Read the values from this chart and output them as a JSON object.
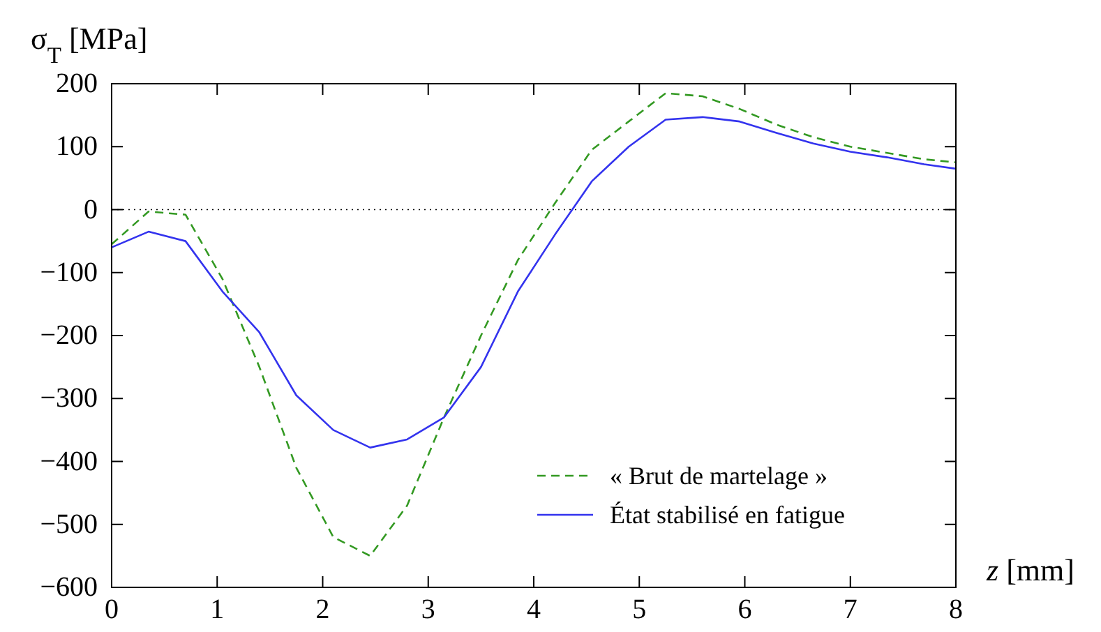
{
  "chart_data": {
    "type": "line",
    "xlabel": "z [mm]",
    "ylabel": "σ$_{T}$ [MPa]",
    "xlim": [
      0,
      8
    ],
    "ylim": [
      -600,
      200
    ],
    "xticks": [
      0,
      1,
      2,
      3,
      4,
      5,
      6,
      7,
      8
    ],
    "yticks": [
      -600,
      -500,
      -400,
      -300,
      -200,
      -100,
      0,
      100,
      200
    ],
    "x": [
      0,
      0.35,
      0.7,
      1.05,
      1.4,
      1.75,
      2.1,
      2.45,
      2.8,
      3.15,
      3.5,
      3.85,
      4.2,
      4.55,
      4.9,
      5.25,
      5.6,
      5.95,
      6.3,
      6.65,
      7,
      7.35,
      7.7,
      8
    ],
    "series": [
      {
        "name": "« Brut de martelage »",
        "color": "#339922",
        "line_style": "dashed",
        "values": [
          -55,
          -3,
          -8,
          -110,
          -250,
          -410,
          -520,
          -550,
          -470,
          -330,
          -200,
          -80,
          10,
          95,
          140,
          185,
          180,
          160,
          135,
          115,
          100,
          90,
          80,
          75
        ]
      },
      {
        "name": "État stabilisé en fatigue",
        "color": "#3333ee",
        "line_style": "solid",
        "values": [
          -60,
          -35,
          -50,
          -130,
          -195,
          -295,
          -350,
          -378,
          -365,
          -330,
          -250,
          -130,
          -40,
          45,
          100,
          143,
          147,
          140,
          122,
          105,
          92,
          83,
          72,
          65
        ]
      }
    ],
    "ref_lines": [
      {
        "axis": "y",
        "value": 0,
        "color": "#000000",
        "line_style": "dotted"
      }
    ],
    "grid": false,
    "legend": "bottom right"
  }
}
